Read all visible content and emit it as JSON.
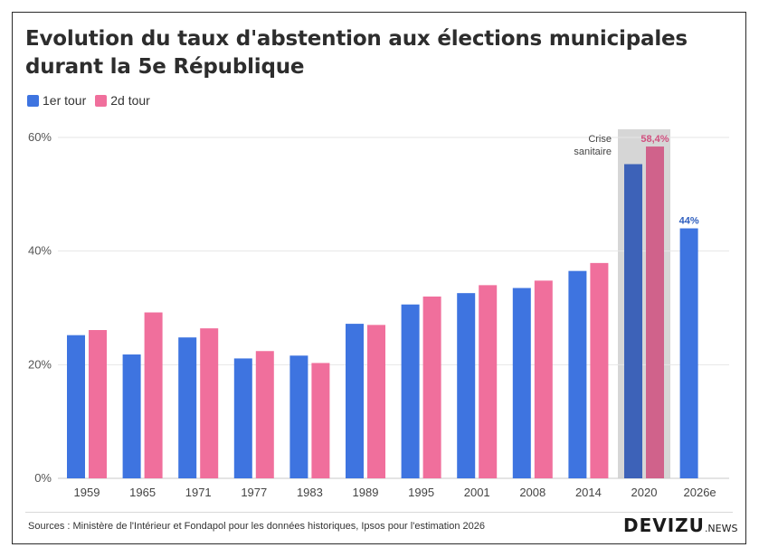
{
  "title": "Evolution du taux d'abstention aux élections municipales durant la 5e République",
  "source": "Sources : Ministère de l'Intérieur et Fondapol pour les données historiques, Ipsos pour l'estimation 2026",
  "logo": {
    "main": "DEVIZU",
    "suffix": ".NEWS"
  },
  "colors": {
    "tour1": "#3e74e0",
    "tour2": "#f06f9c",
    "tour1_2020": "#3d62b8",
    "tour2_2020": "#d0628b",
    "highlight": "#d6d6d6"
  },
  "chart_data": {
    "type": "bar",
    "categories": [
      "1959",
      "1965",
      "1971",
      "1977",
      "1983",
      "1989",
      "1995",
      "2001",
      "2008",
      "2014",
      "2020",
      "2026e"
    ],
    "series": [
      {
        "name": "1er tour",
        "values": [
          25.2,
          21.8,
          24.8,
          21.1,
          21.6,
          27.2,
          30.6,
          32.6,
          33.5,
          36.5,
          55.3,
          44
        ]
      },
      {
        "name": "2d tour",
        "values": [
          26.1,
          29.2,
          26.4,
          22.4,
          20.3,
          27.0,
          32.0,
          34.0,
          34.8,
          37.9,
          58.4,
          null
        ]
      }
    ],
    "ylim": [
      0,
      60
    ],
    "yticks": [
      "0%",
      "20%",
      "40%",
      "60%"
    ],
    "ytick_values": [
      0,
      20,
      40,
      60
    ],
    "grid": true,
    "legend": "top-left",
    "data_labels": [
      {
        "category": "2020",
        "series": "2d tour",
        "text": "58,4%"
      },
      {
        "category": "2026e",
        "series": "1er tour",
        "text": "44%"
      }
    ],
    "annotation": {
      "category": "2020",
      "lines": [
        "Crise",
        "sanitaire"
      ]
    }
  }
}
